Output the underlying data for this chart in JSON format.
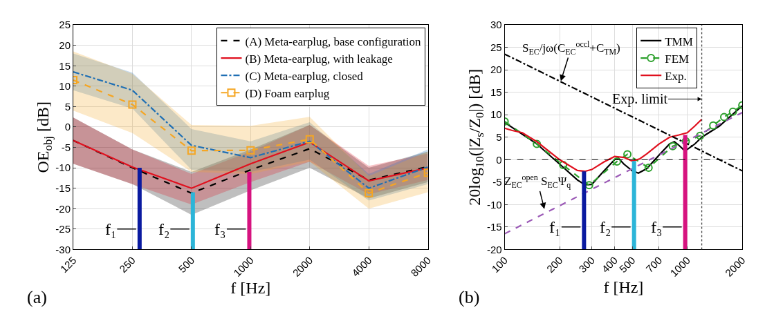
{
  "chart_data": [
    {
      "type": "line",
      "xlabel": "f [Hz]",
      "ylabel": "OE$_{obj}$ [dB]",
      "log": "x",
      "grid": true,
      "legend": "top right",
      "x": [
        125,
        250,
        500,
        1000,
        2000,
        4000,
        8000
      ],
      "xlim": [
        125,
        8000
      ],
      "xticks": [
        125,
        250,
        500,
        1000,
        2000,
        4000,
        8000
      ],
      "ylim": [
        -30,
        25
      ],
      "yticks": [
        -30,
        -25,
        -20,
        -15,
        -10,
        -5,
        0,
        5,
        10,
        15,
        20,
        25
      ],
      "series": [
        {
          "name": "(A) Meta-earplug, base configuration",
          "color": "#000000",
          "line_style": "dashed",
          "values": [
            -3.3,
            -10,
            -16.2,
            -10.5,
            -5.3,
            -13,
            -9.7
          ],
          "lower": [
            -9,
            -14,
            -21.5,
            -15.5,
            -10,
            -17.5,
            -13.5
          ],
          "upper": [
            2.3,
            -5.5,
            -11,
            -5.5,
            0.5,
            -10,
            -6
          ]
        },
        {
          "name": "(B) Meta-earplug, with leakage",
          "color": "#e0101e",
          "line_style": "solid",
          "values": [
            -3.3,
            -9.8,
            -15,
            -9,
            -3.7,
            -13.2,
            -10
          ],
          "lower": [
            -9,
            -14,
            -19,
            -13.5,
            -8.5,
            -16.5,
            -13
          ],
          "upper": [
            2.3,
            -5.5,
            -11.5,
            -6,
            0.5,
            -9.5,
            -6.5
          ]
        },
        {
          "name": "(C) Meta-earplug, closed",
          "color": "#1f6fb4",
          "line_style": "dashdot",
          "values": [
            13.5,
            9,
            -4.5,
            -7.5,
            -3.5,
            -15,
            -9.8
          ],
          "lower": [
            9,
            4.5,
            -10.5,
            -11,
            -8,
            -18,
            -14
          ],
          "upper": [
            18,
            13.3,
            -0.5,
            -3.5,
            1.2,
            -11.5,
            -5.5
          ]
        },
        {
          "name": "(D) Foam earplug",
          "color": "#f5a623",
          "line_style": "dashed",
          "marker": "square",
          "values": [
            11.5,
            5.5,
            -5.8,
            -5.7,
            -3,
            -16.2,
            -11.2
          ],
          "lower": [
            4,
            -1.5,
            -11,
            -11.5,
            -8.5,
            -20,
            -16
          ],
          "upper": [
            18.5,
            13,
            0.5,
            0.3,
            2.5,
            -12,
            -6
          ]
        },
        {
          "color": "#0a1aa0",
          "x": [
            272,
            272
          ],
          "values": [
            -30,
            -10
          ]
        },
        {
          "color": "#2cb5d8",
          "x": [
            508,
            508
          ],
          "values": [
            -30,
            -16
          ]
        },
        {
          "color": "#d6137f",
          "x": [
            985,
            985
          ],
          "values": [
            -30,
            -11
          ]
        }
      ],
      "annotations": [
        "(a)",
        {
          "text": "f₁",
          "x": 272,
          "y": -25
        },
        {
          "text": "f₂",
          "x": 508,
          "y": -25
        },
        {
          "text": "f₃",
          "x": 985,
          "y": -25
        }
      ]
    },
    {
      "type": "line",
      "xlabel": "f [Hz]",
      "ylabel": "20log$_{10}$(|Z$_{s}$/Z$_{0}$|) [dB]",
      "log": "x",
      "grid": true,
      "legend": "top right",
      "xlim": [
        100,
        2000
      ],
      "xticks": [
        100,
        200,
        300,
        400,
        500,
        700,
        1000,
        2000
      ],
      "ylim": [
        -20,
        30
      ],
      "yticks": [
        -20,
        -15,
        -10,
        -5,
        0,
        5,
        10,
        15,
        20,
        25,
        30
      ],
      "series": [
        {
          "name": "TMM",
          "color": "#000000",
          "line_style": "solid",
          "x": [
            100,
            150,
            200,
            250,
            275,
            300,
            350,
            400,
            420,
            450,
            500,
            540,
            600,
            700,
            800,
            850,
            900,
            950,
            1000,
            1100,
            1200,
            1500,
            2000
          ],
          "values": [
            8.3,
            3.5,
            -1,
            -4.5,
            -5.6,
            -5.5,
            -2.5,
            0,
            0.3,
            -1,
            -2.5,
            -3,
            -2,
            1,
            3.5,
            4,
            3.2,
            2.3,
            2.3,
            3.5,
            5,
            7.5,
            12
          ]
        },
        {
          "name": "FEM",
          "color": "#2ca02c",
          "line_style": "dashed",
          "marker": "circle",
          "x": [
            100,
            150,
            209,
            290,
            412,
            470,
            614,
            832,
            982,
            1175,
            1387,
            1592,
            1778,
            2000
          ],
          "values": [
            8.5,
            3.5,
            -1.2,
            -5.7,
            -0.4,
            1.2,
            -1.8,
            3,
            4.1,
            5.3,
            7.6,
            9.5,
            10.7,
            12.1
          ]
        },
        {
          "name": "Exp.",
          "color": "#e0101e",
          "line_style": "solid",
          "x": [
            100,
            110,
            125,
            150,
            200,
            250,
            275,
            300,
            350,
            400,
            450,
            500,
            550,
            600,
            700,
            800,
            900,
            1000,
            1100,
            1200
          ],
          "values": [
            7,
            6.5,
            6,
            4,
            0,
            -2.4,
            -2.6,
            -2.2,
            -0.5,
            0.7,
            0.5,
            -0.3,
            0.2,
            1.3,
            3.5,
            5,
            5.5,
            6,
            7.5,
            9
          ]
        },
        {
          "color": "#000000",
          "line_style": "dashdot",
          "x": [
            100,
            2000
          ],
          "values": [
            23.5,
            -2.5
          ]
        },
        {
          "color": "#9b59b6",
          "line_style": "dashed",
          "x": [
            100,
            2000
          ],
          "values": [
            -16.5,
            10.5
          ]
        },
        {
          "color": "#0a1aa0",
          "x": [
            272,
            272
          ],
          "values": [
            -20,
            -2.6
          ]
        },
        {
          "color": "#2cb5d8",
          "x": [
            511,
            511
          ],
          "values": [
            -20,
            -0.3
          ]
        },
        {
          "color": "#d6137f",
          "x": [
            974,
            974
          ],
          "values": [
            -20,
            5.5
          ]
        }
      ],
      "ref_lines": [
        {
          "axis": "y",
          "value": 0,
          "color": "#000000",
          "line_style": "dashed"
        },
        {
          "axis": "x",
          "value": 1200,
          "color": "#444444",
          "line_style": "dotted",
          "label": "Exp. limit"
        }
      ],
      "annotations": [
        "(b)",
        {
          "text": "S$_{EC}$/jω(C$_{EC}$$^{occl}$+C$_{TM}$)",
          "x": 203,
          "y": 17.5
        },
        {
          "text": "Z$_{EC}$$^{open}$ S$_{EC}$Ψ$_{q}$",
          "x": 165,
          "y": -11
        },
        {
          "text": "f₁",
          "x": 272,
          "y": -15
        },
        {
          "text": "f₂",
          "x": 511,
          "y": -15
        },
        {
          "text": "f₃",
          "x": 974,
          "y": -15
        }
      ]
    }
  ]
}
